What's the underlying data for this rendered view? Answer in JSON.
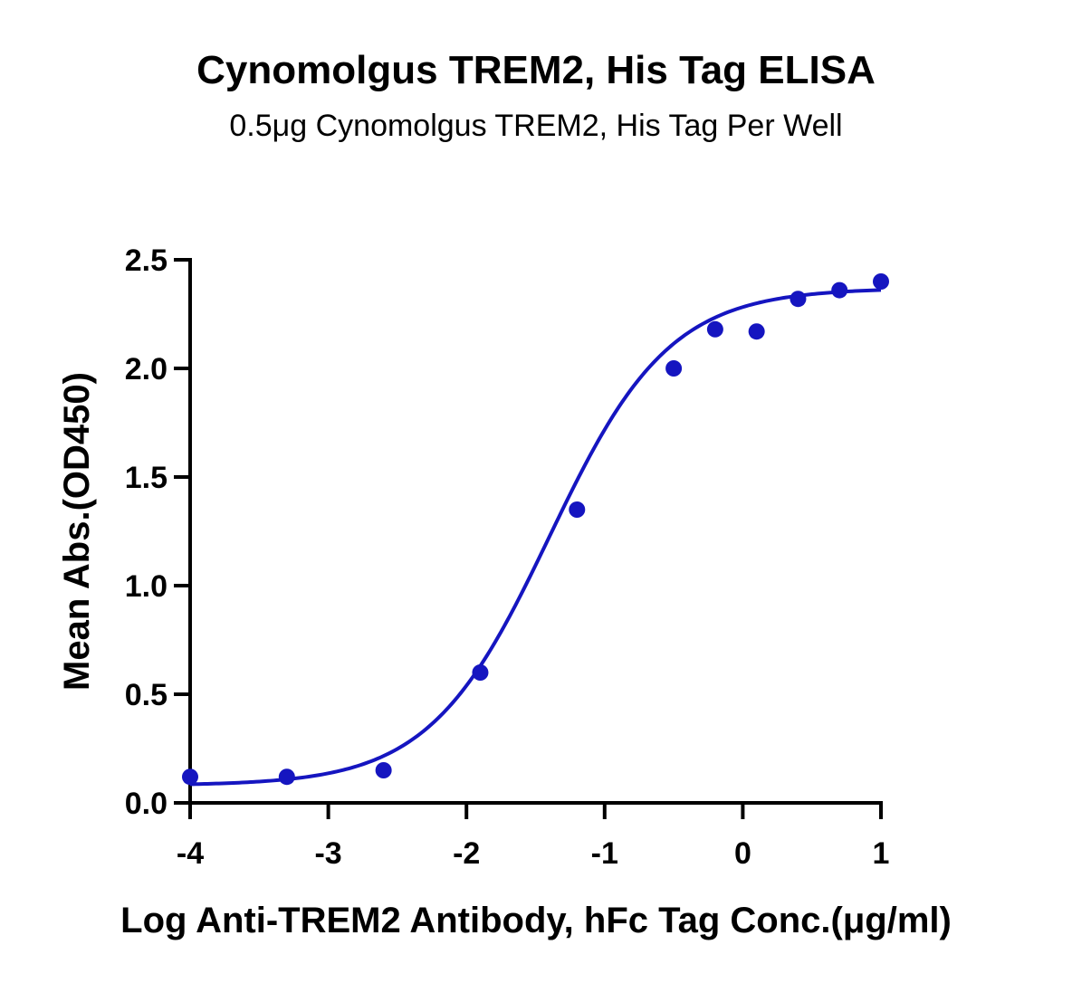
{
  "chart_data": {
    "type": "scatter",
    "title": "Cynomolgus TREM2, His Tag ELISA",
    "subtitle": "0.5μg Cynomolgus TREM2, His Tag Per Well",
    "xlabel": "Log Anti-TREM2 Antibody, hFc  Tag Conc.(μg/ml)",
    "ylabel": "Mean Abs.(OD450)",
    "xlim": [
      -4,
      1
    ],
    "ylim": [
      0,
      2.5
    ],
    "x_ticks": [
      -4,
      -3,
      -2,
      -1,
      0,
      1
    ],
    "x_tick_labels": [
      "-4",
      "-3",
      "-2",
      "-1",
      "0",
      "1"
    ],
    "y_ticks": [
      0,
      0.5,
      1,
      1.5,
      2,
      2.5
    ],
    "y_tick_labels": [
      "0.0",
      "0.5",
      "1.0",
      "1.5",
      "2.0",
      "2.5"
    ],
    "grid": false,
    "color": "#1515c0",
    "series": [
      {
        "x": [
          -4.0,
          -3.3,
          -2.6,
          -1.9,
          -1.2,
          -0.5,
          -0.2,
          0.1,
          0.4,
          0.7,
          1.0
        ],
        "y": [
          0.12,
          0.12,
          0.15,
          0.6,
          1.35,
          2.0,
          2.18,
          2.17,
          2.32,
          2.36,
          2.4
        ],
        "fit": {
          "model": "4PL",
          "bottom": 0.08,
          "top": 2.37,
          "logEC50": -1.4,
          "hill": 1.0
        }
      }
    ]
  }
}
